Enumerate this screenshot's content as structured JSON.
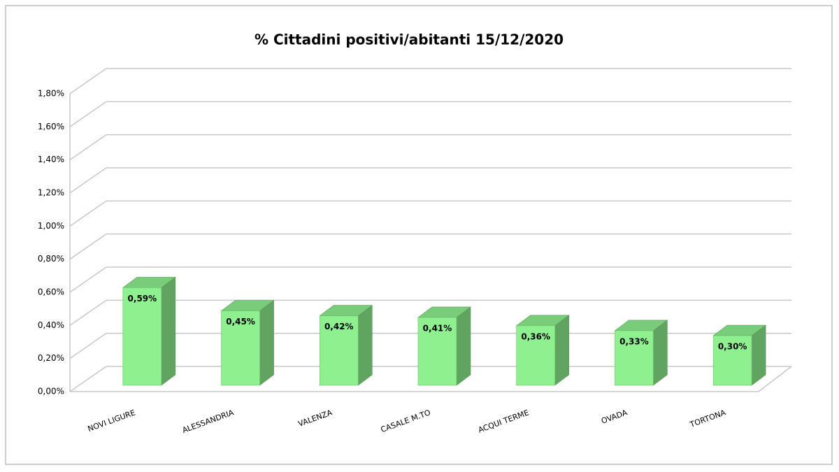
{
  "chart_data": {
    "type": "bar3d",
    "title": "% Cittadini positivi/abitanti 15/12/2020",
    "categories": [
      "NOVI LIGURE",
      "ALESSANDRIA",
      "VALENZA",
      "CASALE M.TO",
      "ACQUI TERME",
      "OVADA",
      "TORTONA"
    ],
    "values": [
      0.59,
      0.45,
      0.42,
      0.41,
      0.36,
      0.33,
      0.3
    ],
    "value_labels": [
      "0,59%",
      "0,45%",
      "0,42%",
      "0,41%",
      "0,36%",
      "0,33%",
      "0,30%"
    ],
    "color": "#8ef08e",
    "ylim": [
      0,
      1.8
    ],
    "yticks": [
      {
        "value": 0,
        "label": "0,00%"
      },
      {
        "value": 0.2,
        "label": "0,20%"
      },
      {
        "value": 0.4,
        "label": "0,40%"
      },
      {
        "value": 0.6,
        "label": "0,60%"
      },
      {
        "value": 0.8,
        "label": "0,80%"
      },
      {
        "value": 1,
        "label": "1,00%"
      },
      {
        "value": 1.2,
        "label": "1,20%"
      },
      {
        "value": 1.4,
        "label": "1,40%"
      },
      {
        "value": 1.6,
        "label": "1,60%"
      },
      {
        "value": 1.8,
        "label": "1,80%"
      }
    ],
    "grid": true
  }
}
